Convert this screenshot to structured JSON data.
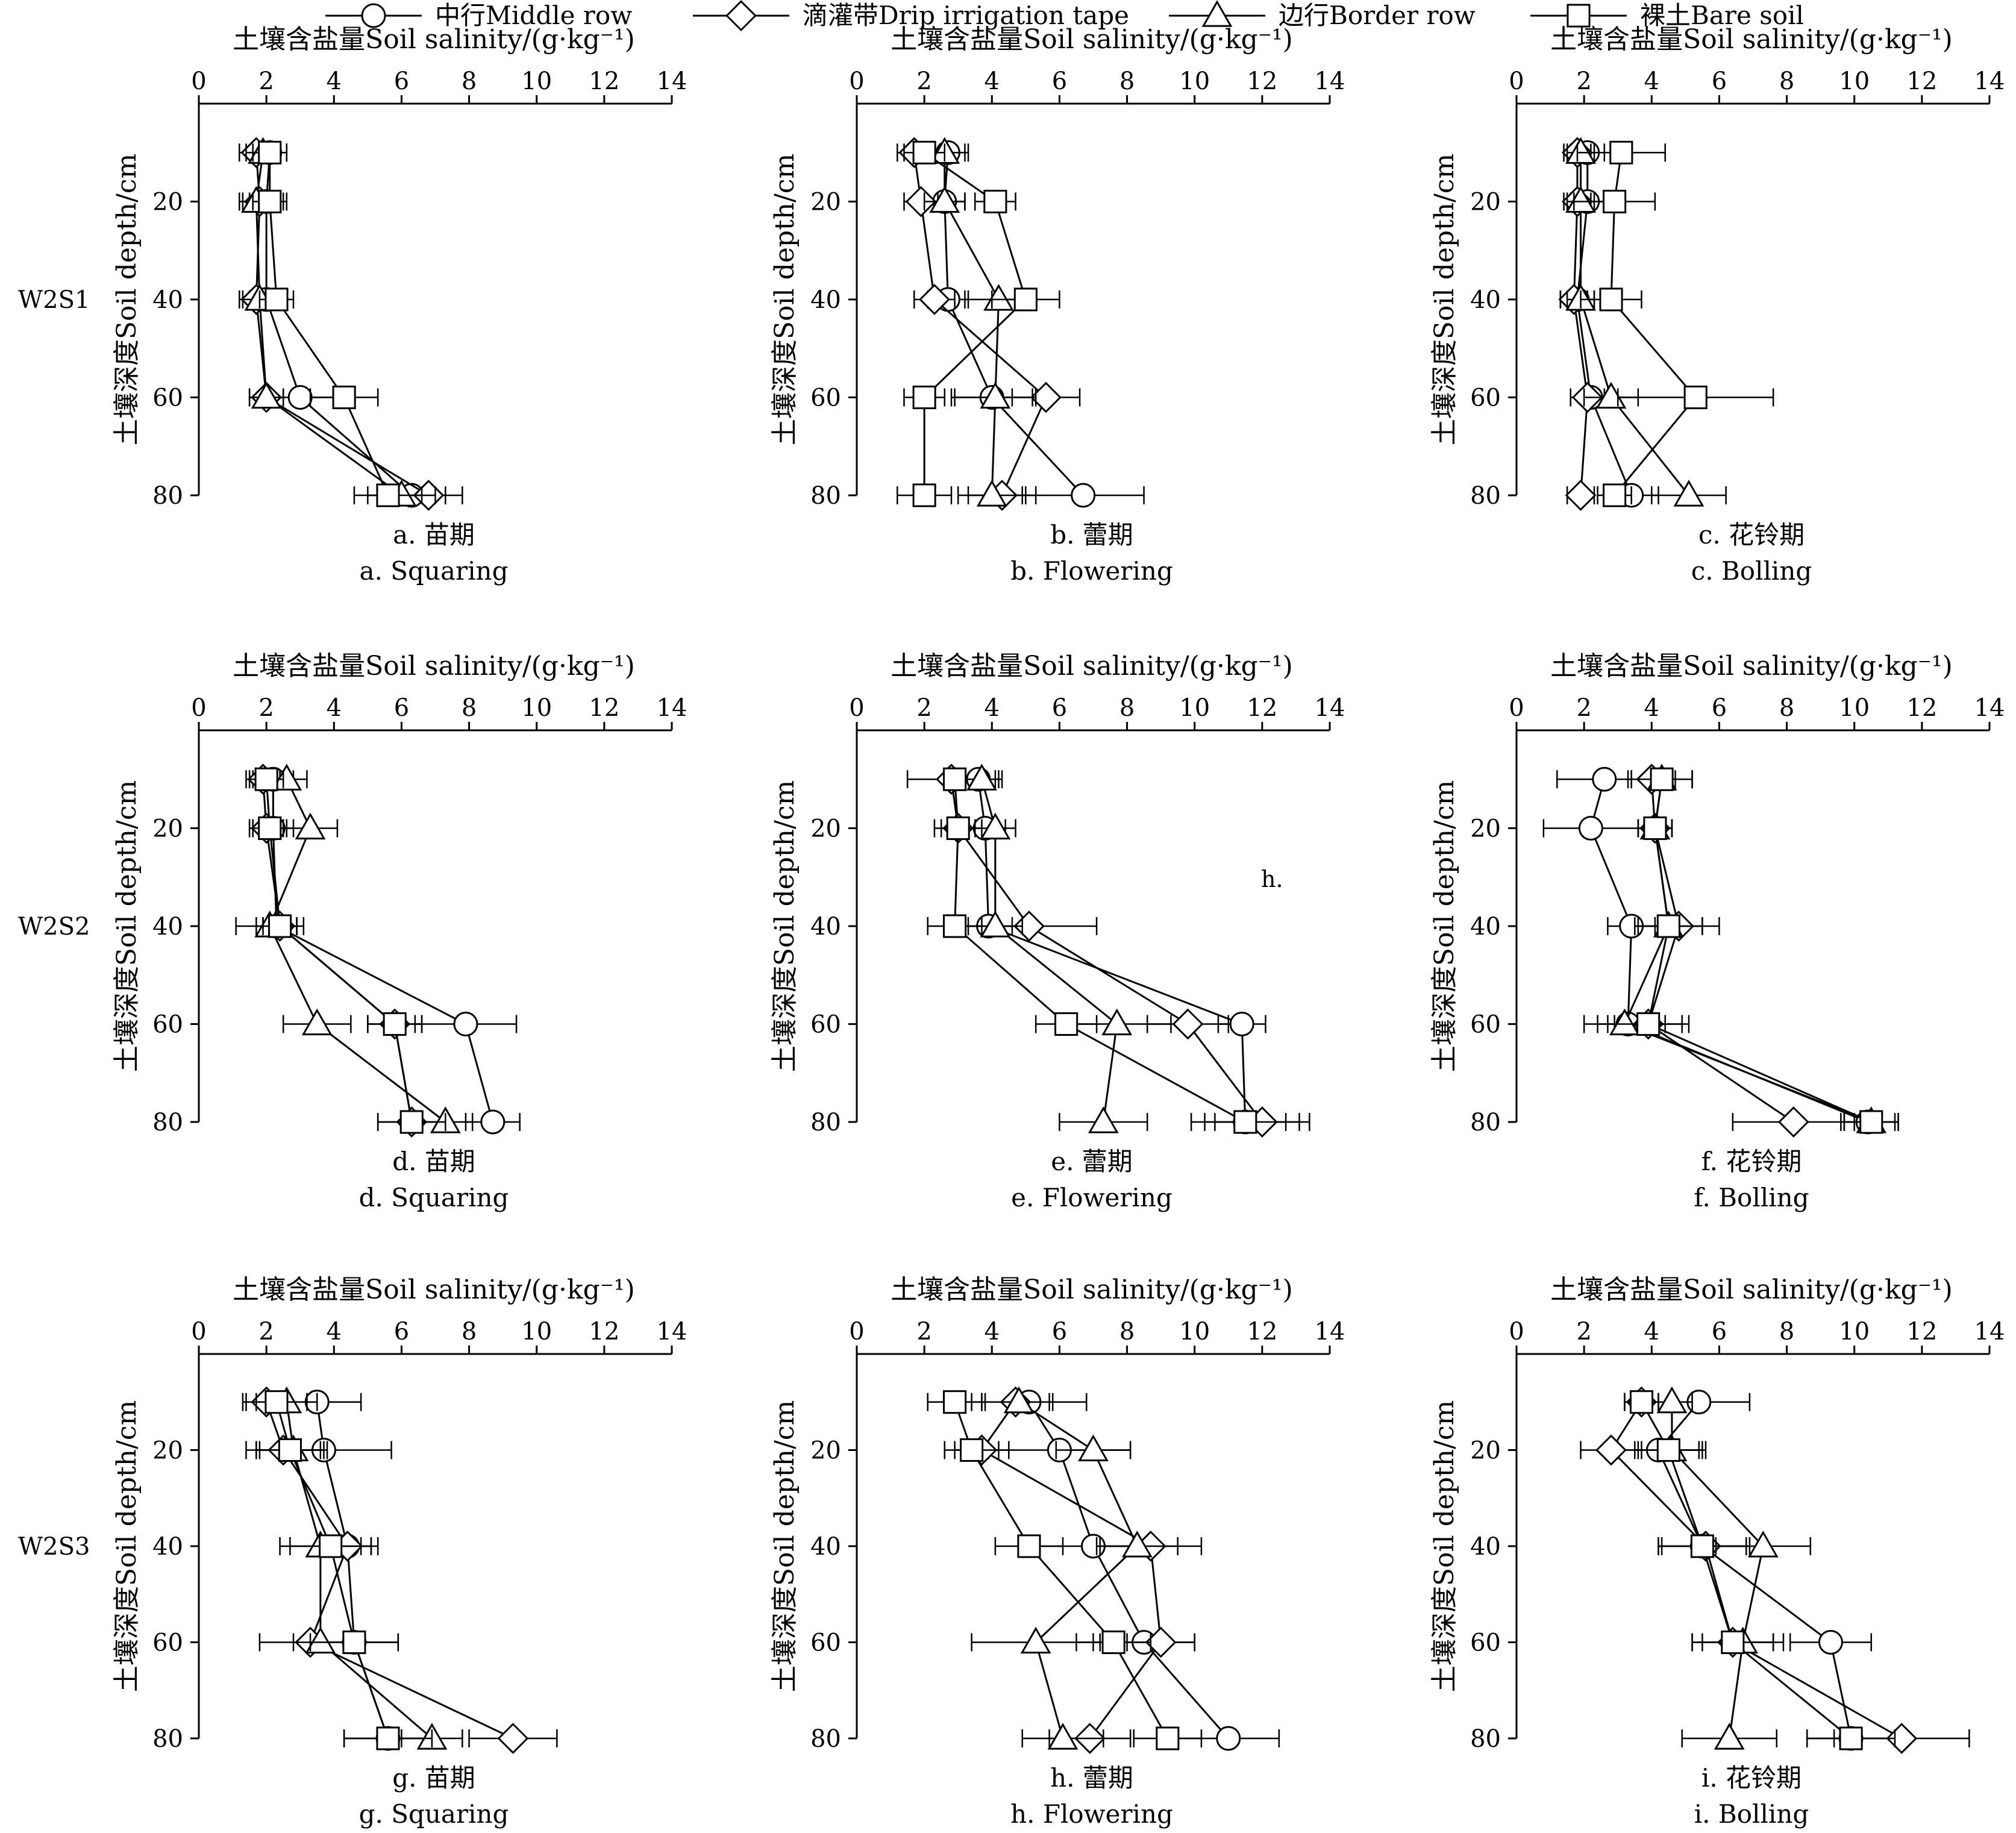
{
  "legend": {
    "items": [
      {
        "name": "中行Middle row",
        "marker": "circle"
      },
      {
        "name": "滴灌带Drip irrigation tape",
        "marker": "diamond"
      },
      {
        "name": "边行Border row",
        "marker": "triangle"
      },
      {
        "name": "裸土Bare soil",
        "marker": "square"
      }
    ]
  },
  "stray_label": "h.",
  "chart_data": [
    {
      "id": "a",
      "row_label": "W2S1",
      "caption_cn": "a. 苗期",
      "caption_en": "a. Squaring",
      "type": "line",
      "title": "土壤含盐量Soil salinity/(g·kg⁻¹)",
      "ylabel": "土壤深度Soil depth/cm",
      "xlim": [
        0,
        14
      ],
      "xticks": [
        0,
        2,
        4,
        6,
        8,
        10,
        12,
        14
      ],
      "ylim": [
        0,
        80
      ],
      "yticks": [
        20,
        40,
        60,
        80
      ],
      "depths": [
        10,
        20,
        40,
        60,
        80
      ],
      "series": [
        {
          "name": "中行Middle row",
          "marker": "circle",
          "values": [
            2.1,
            2.0,
            2.0,
            3.0,
            6.3
          ],
          "errors": [
            0.5,
            0.5,
            0.5,
            1.0,
            1.0
          ]
        },
        {
          "name": "滴灌带Drip irrigation tape",
          "marker": "diamond",
          "values": [
            1.7,
            1.8,
            1.7,
            2.0,
            6.8
          ],
          "errors": [
            0.5,
            0.5,
            0.5,
            0.5,
            1.0
          ]
        },
        {
          "name": "边行Border row",
          "marker": "triangle",
          "values": [
            1.9,
            1.7,
            1.8,
            2.0,
            6.0
          ],
          "errors": [
            0.5,
            0.5,
            0.5,
            0.5,
            1.0
          ]
        },
        {
          "name": "裸土Bare soil",
          "marker": "square",
          "values": [
            2.1,
            2.1,
            2.3,
            4.3,
            5.6
          ],
          "errors": [
            0.5,
            0.5,
            0.5,
            1.0,
            1.0
          ]
        }
      ]
    },
    {
      "id": "b",
      "row_label": "",
      "caption_cn": "b. 蕾期",
      "caption_en": "b. Flowering",
      "type": "line",
      "title": "土壤含盐量Soil salinity/(g·kg⁻¹)",
      "ylabel": "土壤深度Soil depth/cm",
      "xlim": [
        0,
        14
      ],
      "xticks": [
        0,
        2,
        4,
        6,
        8,
        10,
        12,
        14
      ],
      "ylim": [
        0,
        80
      ],
      "yticks": [
        20,
        40,
        60,
        80
      ],
      "depths": [
        10,
        20,
        40,
        60,
        80
      ],
      "series": [
        {
          "name": "中行Middle row",
          "marker": "circle",
          "values": [
            2.7,
            2.6,
            2.7,
            4.0,
            6.7
          ],
          "errors": [
            0.6,
            0.6,
            0.6,
            1.2,
            1.8
          ]
        },
        {
          "name": "滴灌带Drip irrigation tape",
          "marker": "diamond",
          "values": [
            1.7,
            1.9,
            2.3,
            5.6,
            4.3
          ],
          "errors": [
            0.5,
            0.5,
            0.6,
            1.0,
            1.0
          ]
        },
        {
          "name": "边行Border row",
          "marker": "triangle",
          "values": [
            2.6,
            2.6,
            4.2,
            4.1,
            4.0
          ],
          "errors": [
            0.6,
            0.6,
            1.0,
            1.2,
            1.0
          ]
        },
        {
          "name": "裸土Bare soil",
          "marker": "square",
          "values": [
            2.0,
            4.1,
            5.0,
            2.0,
            2.0
          ],
          "errors": [
            0.6,
            0.6,
            1.0,
            0.6,
            0.8
          ]
        }
      ]
    },
    {
      "id": "c",
      "row_label": "",
      "caption_cn": "c. 花铃期",
      "caption_en": "c. Bolling",
      "type": "line",
      "title": "土壤含盐量Soil salinity/(g·kg⁻¹)",
      "ylabel": "土壤深度Soil depth/cm",
      "xlim": [
        0,
        14
      ],
      "xticks": [
        0,
        2,
        4,
        6,
        8,
        10,
        12,
        14
      ],
      "ylim": [
        0,
        80
      ],
      "yticks": [
        20,
        40,
        60,
        80
      ],
      "depths": [
        10,
        20,
        40,
        60,
        80
      ],
      "series": [
        {
          "name": "中行Middle row",
          "marker": "circle",
          "values": [
            2.1,
            2.1,
            1.8,
            2.2,
            3.4
          ],
          "errors": [
            0.5,
            0.5,
            0.5,
            0.6,
            0.8
          ]
        },
        {
          "name": "滴灌带Drip irrigation tape",
          "marker": "diamond",
          "values": [
            1.8,
            1.8,
            1.7,
            2.1,
            1.9
          ],
          "errors": [
            0.4,
            0.4,
            0.4,
            0.5,
            0.4
          ]
        },
        {
          "name": "边行Border row",
          "marker": "triangle",
          "values": [
            1.9,
            1.9,
            1.9,
            2.8,
            5.1
          ],
          "errors": [
            0.4,
            0.4,
            0.4,
            0.8,
            1.1
          ]
        },
        {
          "name": "裸土Bare soil",
          "marker": "square",
          "values": [
            3.1,
            2.9,
            2.8,
            5.3,
            2.9
          ],
          "errors": [
            1.3,
            1.2,
            0.9,
            2.3,
            0.5
          ]
        }
      ]
    },
    {
      "id": "d",
      "row_label": "W2S2",
      "caption_cn": "d. 苗期",
      "caption_en": "d. Squaring",
      "type": "line",
      "title": "土壤含盐量Soil salinity/(g·kg⁻¹)",
      "ylabel": "土壤深度Soil depth/cm",
      "xlim": [
        0,
        14
      ],
      "xticks": [
        0,
        2,
        4,
        6,
        8,
        10,
        12,
        14
      ],
      "ylim": [
        0,
        80
      ],
      "yticks": [
        20,
        40,
        60,
        80
      ],
      "depths": [
        10,
        20,
        40,
        60,
        80
      ],
      "series": [
        {
          "name": "中行Middle row",
          "marker": "circle",
          "values": [
            2.2,
            2.2,
            2.3,
            7.9,
            8.7
          ],
          "errors": [
            0.6,
            0.6,
            0.6,
            1.5,
            0.8
          ]
        },
        {
          "name": "滴灌带Drip irrigation tape",
          "marker": "diamond",
          "values": [
            1.9,
            2.0,
            2.4,
            5.8,
            6.3
          ],
          "errors": [
            0.5,
            0.5,
            0.5,
            0.8,
            1.0
          ]
        },
        {
          "name": "边行Border row",
          "marker": "triangle",
          "values": [
            2.6,
            3.3,
            2.1,
            3.5,
            7.3
          ],
          "errors": [
            0.6,
            0.8,
            1.0,
            1.0,
            0.8
          ]
        },
        {
          "name": "裸土Bare soil",
          "marker": "square",
          "values": [
            2.0,
            2.1,
            2.4,
            5.8,
            6.3
          ],
          "errors": [
            0.5,
            0.5,
            0.5,
            0.8,
            1.0
          ]
        }
      ]
    },
    {
      "id": "e",
      "row_label": "",
      "caption_cn": "e. 蕾期",
      "caption_en": "e. Flowering",
      "type": "line",
      "title": "土壤含盐量Soil salinity/(g·kg⁻¹)",
      "ylabel": "土壤深度Soil depth/cm",
      "xlim": [
        0,
        14
      ],
      "xticks": [
        0,
        2,
        4,
        6,
        8,
        10,
        12,
        14
      ],
      "ylim": [
        0,
        80
      ],
      "yticks": [
        20,
        40,
        60,
        80
      ],
      "depths": [
        10,
        20,
        40,
        60,
        80
      ],
      "series": [
        {
          "name": "中行Middle row",
          "marker": "circle",
          "values": [
            3.6,
            3.8,
            3.9,
            11.4,
            11.5
          ],
          "errors": [
            0.6,
            0.6,
            0.7,
            0.7,
            1.2
          ]
        },
        {
          "name": "滴灌带Drip irrigation tape",
          "marker": "diamond",
          "values": [
            2.8,
            3.0,
            5.1,
            9.8,
            12.0
          ],
          "errors": [
            1.3,
            0.7,
            2.0,
            1.2,
            1.4
          ]
        },
        {
          "name": "边行Border row",
          "marker": "triangle",
          "values": [
            3.7,
            4.1,
            4.1,
            7.7,
            7.3
          ],
          "errors": [
            0.6,
            0.6,
            0.8,
            1.6,
            1.3
          ]
        },
        {
          "name": "裸土Bare soil",
          "marker": "square",
          "values": [
            2.9,
            3.0,
            2.9,
            6.2,
            11.5
          ],
          "errors": [
            0.3,
            0.5,
            0.8,
            0.9,
            1.6
          ]
        }
      ]
    },
    {
      "id": "f",
      "row_label": "",
      "caption_cn": "f. 花铃期",
      "caption_en": "f. Bolling",
      "type": "line",
      "title": "土壤含盐量Soil salinity/(g·kg⁻¹)",
      "ylabel": "土壤深度Soil depth/cm",
      "xlim": [
        0,
        14
      ],
      "xticks": [
        0,
        2,
        4,
        6,
        8,
        10,
        12,
        14
      ],
      "ylim": [
        0,
        80
      ],
      "yticks": [
        20,
        40,
        60,
        80
      ],
      "depths": [
        10,
        20,
        40,
        60,
        80
      ],
      "series": [
        {
          "name": "中行Middle row",
          "marker": "circle",
          "values": [
            2.6,
            2.2,
            3.4,
            3.3,
            10.4
          ],
          "errors": [
            1.4,
            1.4,
            0.7,
            0.9,
            0.8
          ]
        },
        {
          "name": "滴灌带Drip irrigation tape",
          "marker": "diamond",
          "values": [
            4.0,
            4.1,
            4.8,
            3.9,
            8.2
          ],
          "errors": [
            0.7,
            0.5,
            1.2,
            1.0,
            1.8
          ]
        },
        {
          "name": "边行Border row",
          "marker": "triangle",
          "values": [
            4.3,
            4.1,
            4.5,
            3.2,
            10.5
          ],
          "errors": [
            0.9,
            0.5,
            1.0,
            1.2,
            0.8
          ]
        },
        {
          "name": "裸土Bare soil",
          "marker": "square",
          "values": [
            4.3,
            4.1,
            4.5,
            3.9,
            10.5
          ],
          "errors": [
            0.9,
            0.5,
            1.0,
            1.2,
            0.8
          ]
        }
      ]
    },
    {
      "id": "g",
      "row_label": "W2S3",
      "caption_cn": "g. 苗期",
      "caption_en": "g. Squaring",
      "type": "line",
      "title": "土壤含盐量Soil salinity/(g·kg⁻¹)",
      "ylabel": "土壤深度Soil depth/cm",
      "xlim": [
        0,
        14
      ],
      "xticks": [
        0,
        2,
        4,
        6,
        8,
        10,
        12,
        14
      ],
      "ylim": [
        0,
        80
      ],
      "yticks": [
        20,
        40,
        60,
        80
      ],
      "depths": [
        10,
        20,
        40,
        60,
        80
      ],
      "series": [
        {
          "name": "中行Middle row",
          "marker": "circle",
          "values": [
            3.5,
            3.7,
            4.4,
            4.6,
            5.6
          ],
          "errors": [
            1.3,
            2.0,
            0.7,
            1.3,
            1.3
          ]
        },
        {
          "name": "滴灌带Drip irrigation tape",
          "marker": "diamond",
          "values": [
            2.0,
            2.5,
            4.4,
            3.3,
            9.3
          ],
          "errors": [
            0.7,
            1.1,
            0.9,
            1.5,
            1.3
          ]
        },
        {
          "name": "边行Border row",
          "marker": "triangle",
          "values": [
            2.6,
            2.8,
            3.6,
            3.6,
            6.9
          ],
          "errors": [
            0.9,
            1.0,
            1.2,
            0.8,
            0.9
          ]
        },
        {
          "name": "裸土Bare soil",
          "marker": "square",
          "values": [
            2.3,
            2.7,
            3.9,
            4.6,
            5.6
          ],
          "errors": [
            0.9,
            1.0,
            1.2,
            1.3,
            1.3
          ]
        }
      ]
    },
    {
      "id": "h",
      "row_label": "",
      "caption_cn": "h. 蕾期",
      "caption_en": "h. Flowering",
      "type": "line",
      "title": "土壤含盐量Soil salinity/(g·kg⁻¹)",
      "ylabel": "土壤深度Soil depth/cm",
      "xlim": [
        0,
        14
      ],
      "xticks": [
        0,
        2,
        4,
        6,
        8,
        10,
        12,
        14
      ],
      "ylim": [
        0,
        80
      ],
      "yticks": [
        20,
        40,
        60,
        80
      ],
      "depths": [
        10,
        20,
        40,
        60,
        80
      ],
      "series": [
        {
          "name": "中行Middle row",
          "marker": "circle",
          "values": [
            5.1,
            6.0,
            7.0,
            8.5,
            11.0
          ],
          "errors": [
            1.7,
            2.1,
            1.6,
            1.5,
            1.5
          ]
        },
        {
          "name": "滴灌带Drip irrigation tape",
          "marker": "diamond",
          "values": [
            4.7,
            3.7,
            8.7,
            9.0,
            6.9
          ],
          "errors": [
            1.0,
            0.8,
            1.5,
            1.0,
            1.2
          ]
        },
        {
          "name": "边行Border row",
          "marker": "triangle",
          "values": [
            4.8,
            7.0,
            8.3,
            5.3,
            6.1
          ],
          "errors": [
            1.0,
            1.1,
            1.2,
            1.9,
            1.2
          ]
        },
        {
          "name": "裸土Bare soil",
          "marker": "square",
          "values": [
            2.9,
            3.4,
            5.1,
            7.6,
            9.2
          ],
          "errors": [
            0.8,
            0.8,
            1.0,
            1.1,
            1.0
          ]
        }
      ]
    },
    {
      "id": "i",
      "row_label": "",
      "caption_cn": "i. 花铃期",
      "caption_en": "i. Bolling",
      "type": "line",
      "title": "土壤含盐量Soil salinity/(g·kg⁻¹)",
      "ylabel": "土壤深度Soil depth/cm",
      "xlim": [
        0,
        14
      ],
      "xticks": [
        0,
        2,
        4,
        6,
        8,
        10,
        12,
        14
      ],
      "ylim": [
        0,
        80
      ],
      "yticks": [
        20,
        40,
        60,
        80
      ],
      "depths": [
        10,
        20,
        40,
        60,
        80
      ],
      "series": [
        {
          "name": "中行Middle row",
          "marker": "circle",
          "values": [
            5.4,
            4.2,
            5.5,
            9.3,
            9.9
          ],
          "errors": [
            1.5,
            1.2,
            1.3,
            1.2,
            1.3
          ]
        },
        {
          "name": "滴灌带Drip irrigation tape",
          "marker": "diamond",
          "values": [
            3.7,
            2.8,
            5.6,
            6.4,
            11.4
          ],
          "errors": [
            0.5,
            0.9,
            1.3,
            1.2,
            2.0
          ]
        },
        {
          "name": "边行Border row",
          "marker": "triangle",
          "values": [
            4.6,
            4.6,
            7.3,
            6.7,
            6.3
          ],
          "errors": [
            0.6,
            1.0,
            1.4,
            1.2,
            1.4
          ]
        },
        {
          "name": "裸土Bare soil",
          "marker": "square",
          "values": [
            3.7,
            4.5,
            5.5,
            6.4,
            9.9
          ],
          "errors": [
            0.5,
            1.0,
            1.3,
            1.2,
            1.3
          ]
        }
      ]
    }
  ]
}
